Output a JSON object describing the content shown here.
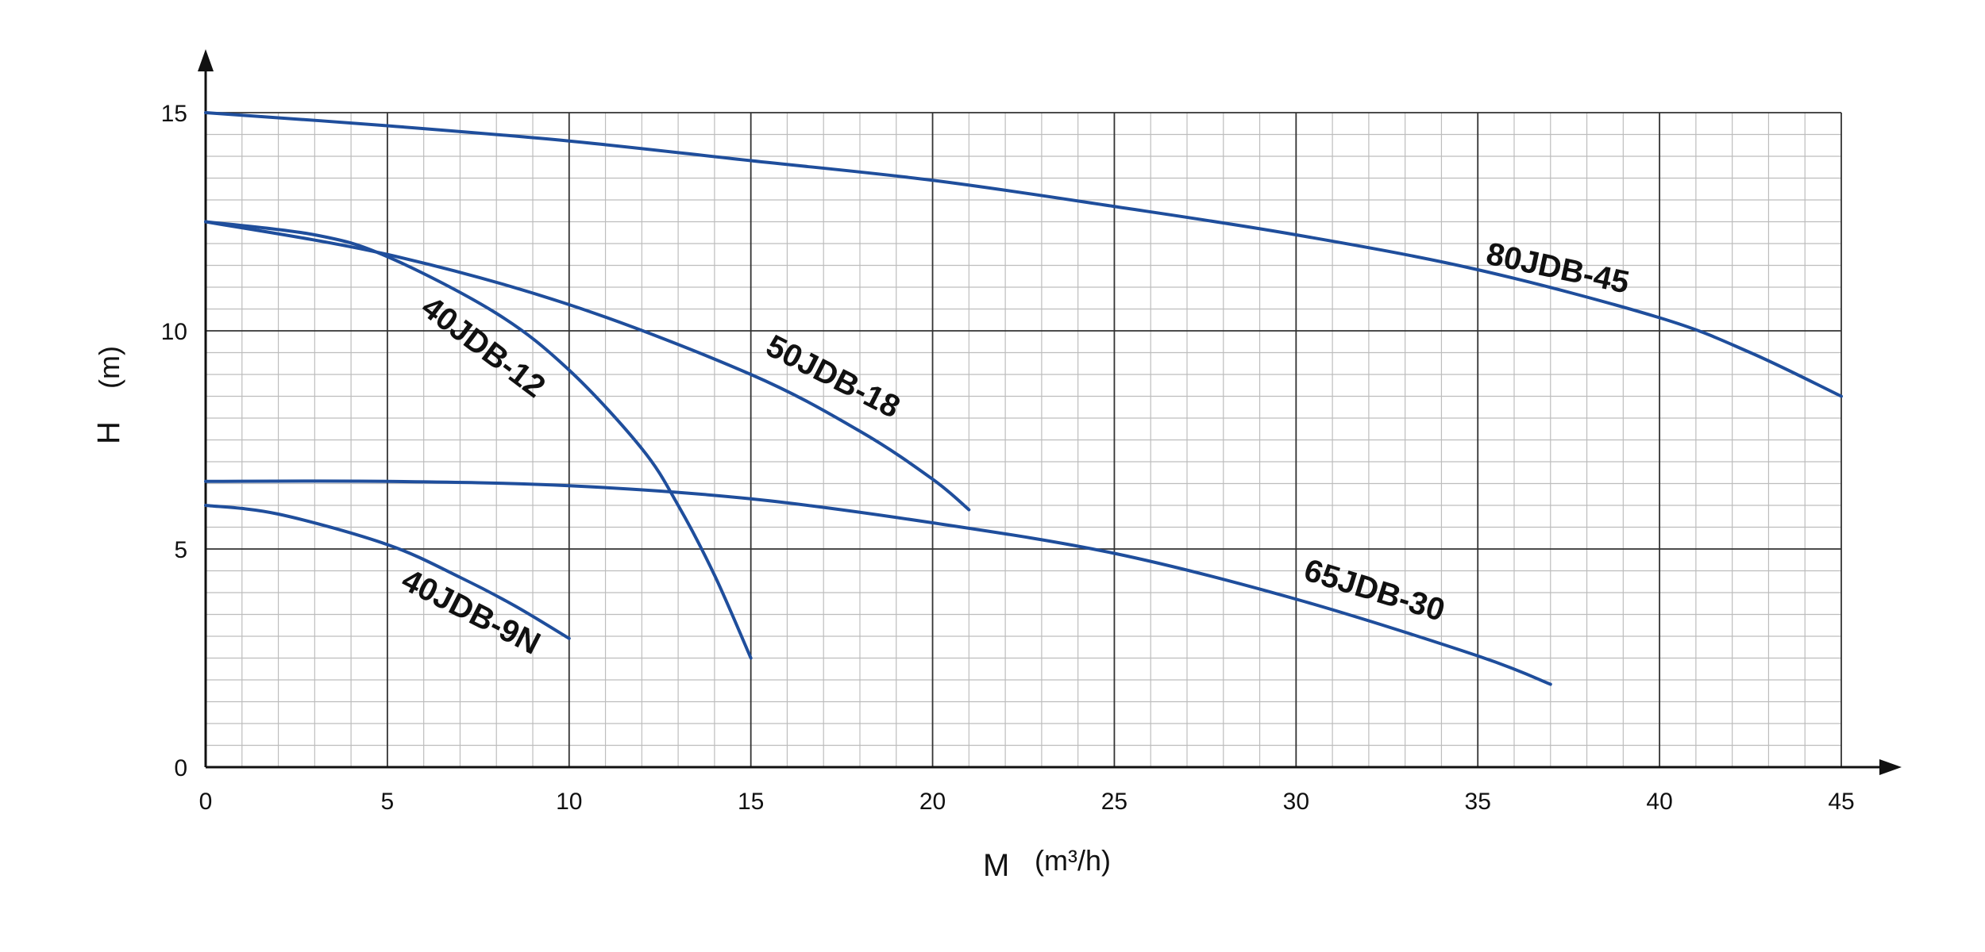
{
  "chart_data": {
    "type": "line",
    "title": "",
    "xlabel": "M",
    "xlabel_unit": "(m³/h)",
    "ylabel": "H",
    "ylabel_unit": "(m)",
    "xlim": [
      0,
      45
    ],
    "ylim": [
      0,
      15
    ],
    "x_ticks": [
      0,
      5,
      10,
      15,
      20,
      25,
      30,
      35,
      40,
      45
    ],
    "y_ticks": [
      0,
      5,
      10,
      15
    ],
    "grid": true,
    "line_color": "#1f4e9c",
    "series": [
      {
        "name": "80JDB-45",
        "x": [
          0,
          5,
          10,
          15,
          20,
          25,
          30,
          35,
          40,
          42.5,
          45
        ],
        "y": [
          15.0,
          14.7,
          14.35,
          13.9,
          13.45,
          12.85,
          12.2,
          11.4,
          10.3,
          9.5,
          8.5
        ]
      },
      {
        "name": "50JDB-18",
        "x": [
          0,
          5,
          10,
          15,
          18,
          20,
          21
        ],
        "y": [
          12.5,
          11.75,
          10.6,
          9.0,
          7.7,
          6.6,
          5.9
        ]
      },
      {
        "name": "40JDB-12",
        "x": [
          0,
          3,
          5,
          8,
          10,
          12,
          13,
          14,
          15
        ],
        "y": [
          12.5,
          12.2,
          11.7,
          10.4,
          9.1,
          7.3,
          6.0,
          4.4,
          2.5
        ]
      },
      {
        "name": "65JDB-30",
        "x": [
          0,
          5,
          10,
          15,
          20,
          25,
          30,
          35,
          37
        ],
        "y": [
          6.55,
          6.55,
          6.45,
          6.15,
          5.6,
          4.9,
          3.85,
          2.55,
          1.9
        ]
      },
      {
        "name": "40JDB-9N",
        "x": [
          0,
          2,
          5,
          7,
          8.5,
          10
        ],
        "y": [
          6.0,
          5.8,
          5.1,
          4.35,
          3.7,
          2.95
        ]
      }
    ],
    "annotations": [
      "80JDB-45",
      "50JDB-18",
      "40JDB-12",
      "65JDB-30",
      "40JDB-9N"
    ]
  }
}
